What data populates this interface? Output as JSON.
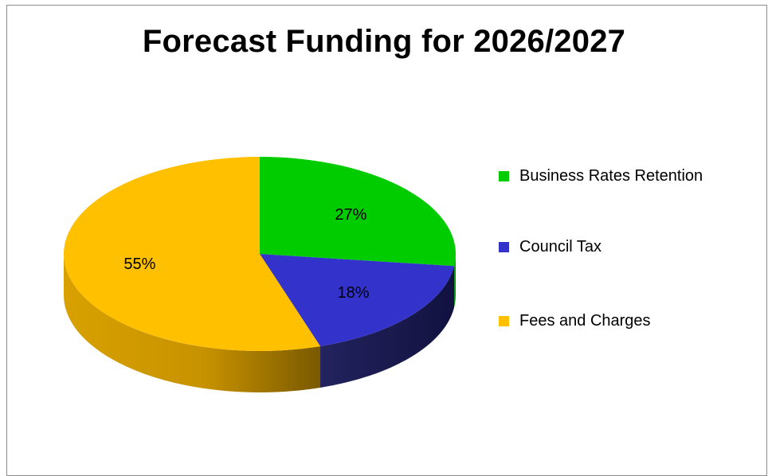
{
  "chart_data": {
    "type": "pie",
    "title": "Forecast Funding for 2026/2027",
    "slices": [
      {
        "label": "Business Rates Retention",
        "value": 27,
        "display": "27%",
        "color": "#00cc00",
        "side_color": "#009900"
      },
      {
        "label": "Council Tax",
        "value": 18,
        "display": "18%",
        "color": "#3333cc",
        "side_color": "#1a1a66"
      },
      {
        "label": "Fees and Charges",
        "value": 55,
        "display": "55%",
        "color": "#ffc000",
        "side_color": "#c99700"
      }
    ],
    "legend_position": "right",
    "style": "3d"
  }
}
